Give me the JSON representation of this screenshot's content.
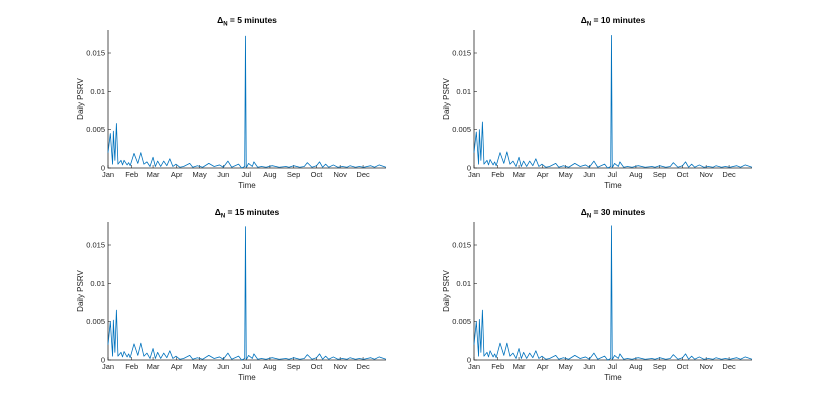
{
  "chart_data": [
    {
      "type": "line",
      "title_prefix": "Δ",
      "title_subscript": "N",
      "title_suffix": " = 5 minutes",
      "xlabel": "Time",
      "ylabel": "Daily PSRV",
      "ylim": [
        0,
        0.018
      ],
      "y_ticks": [
        0,
        0.005,
        0.01,
        0.015
      ],
      "y_tick_labels": [
        "0",
        "0.005",
        "0.01",
        "0.015"
      ],
      "x_ticks": [
        1,
        32,
        60,
        91,
        121,
        152,
        182,
        213,
        244,
        274,
        305,
        335
      ],
      "x_tick_labels": [
        "Jan",
        "Feb",
        "Mar",
        "Apr",
        "May",
        "Jun",
        "Jul",
        "Aug",
        "Sep",
        "Oct",
        "Nov",
        "Dec"
      ],
      "xlim": [
        1,
        365
      ],
      "color": "#0072BD",
      "x": [
        1,
        4,
        7,
        8,
        10,
        12,
        14,
        18,
        20,
        22,
        26,
        28,
        30,
        35,
        40,
        44,
        48,
        52,
        56,
        60,
        63,
        66,
        70,
        74,
        78,
        82,
        86,
        90,
        95,
        100,
        108,
        112,
        118,
        125,
        133,
        140,
        147,
        152,
        158,
        163,
        172,
        176,
        178,
        180,
        181,
        182,
        183,
        185,
        190,
        192,
        197,
        202,
        208,
        216,
        225,
        234,
        238,
        244,
        252,
        258,
        262,
        268,
        274,
        278,
        282,
        286,
        290,
        296,
        302,
        308,
        314,
        318,
        325,
        330,
        336,
        345,
        350,
        356,
        365
      ],
      "y": [
        0.002,
        0.0045,
        0.0005,
        0.0048,
        0.001,
        0.0058,
        0.0005,
        0.001,
        0.0004,
        0.001,
        0.0004,
        0.0007,
        0.0003,
        0.0019,
        0.0006,
        0.002,
        0.0005,
        0.0008,
        0.0002,
        0.0014,
        0.0002,
        0.0009,
        0.0002,
        0.0009,
        0.0003,
        0.0012,
        0.0002,
        0.0005,
        0.0001,
        0.0002,
        0.0006,
        0.0001,
        0.0003,
        0.0001,
        0.0006,
        0.0002,
        0.0004,
        0.0001,
        0.0009,
        0.0001,
        0.0005,
        0.0,
        0.0001,
        0.0002,
        0.0172,
        0.0001,
        0.0002,
        0.0006,
        0.0002,
        0.0008,
        0.0001,
        0.0002,
        0.0001,
        0.0003,
        0.0001,
        0.0002,
        0.0001,
        0.0003,
        0.0001,
        0.0002,
        0.0007,
        0.0001,
        0.0003,
        0.0008,
        0.0001,
        0.0005,
        0.0001,
        0.0004,
        0.0001,
        0.0002,
        0.0001,
        0.0003,
        0.0001,
        0.0002,
        0.0001,
        0.0003,
        0.0001,
        0.0004,
        0.0001
      ]
    },
    {
      "type": "line",
      "title_prefix": "Δ",
      "title_subscript": "N",
      "title_suffix": " = 10 minutes",
      "xlabel": "Time",
      "ylabel": "Daily PSRV",
      "ylim": [
        0,
        0.018
      ],
      "y_ticks": [
        0,
        0.005,
        0.01,
        0.015
      ],
      "y_tick_labels": [
        "0",
        "0.005",
        "0.01",
        "0.015"
      ],
      "x_ticks": [
        1,
        32,
        60,
        91,
        121,
        152,
        182,
        213,
        244,
        274,
        305,
        335
      ],
      "x_tick_labels": [
        "Jan",
        "Feb",
        "Mar",
        "Apr",
        "May",
        "Jun",
        "Jul",
        "Aug",
        "Sep",
        "Oct",
        "Nov",
        "Dec"
      ],
      "xlim": [
        1,
        365
      ],
      "color": "#0072BD",
      "x": [
        1,
        4,
        7,
        8,
        10,
        12,
        14,
        18,
        20,
        22,
        26,
        28,
        30,
        35,
        40,
        44,
        48,
        52,
        56,
        60,
        63,
        66,
        70,
        74,
        78,
        82,
        86,
        90,
        95,
        100,
        108,
        112,
        118,
        125,
        133,
        140,
        147,
        152,
        158,
        163,
        172,
        176,
        178,
        180,
        181,
        182,
        183,
        185,
        190,
        192,
        197,
        202,
        208,
        216,
        225,
        234,
        238,
        244,
        252,
        258,
        262,
        268,
        274,
        278,
        282,
        286,
        290,
        296,
        302,
        308,
        314,
        318,
        325,
        330,
        336,
        345,
        350,
        356,
        365
      ],
      "y": [
        0.002,
        0.0047,
        0.0005,
        0.005,
        0.001,
        0.006,
        0.0005,
        0.001,
        0.0004,
        0.0011,
        0.0004,
        0.0008,
        0.0003,
        0.002,
        0.0006,
        0.0021,
        0.0005,
        0.0009,
        0.0002,
        0.0014,
        0.0002,
        0.0009,
        0.0002,
        0.0009,
        0.0003,
        0.0012,
        0.0002,
        0.0005,
        0.0001,
        0.0002,
        0.0006,
        0.0001,
        0.0003,
        0.0001,
        0.0006,
        0.0002,
        0.0004,
        0.0001,
        0.0009,
        0.0001,
        0.0005,
        0.0,
        0.0001,
        0.0002,
        0.0173,
        0.0001,
        0.0002,
        0.0006,
        0.0002,
        0.0008,
        0.0001,
        0.0002,
        0.0001,
        0.0003,
        0.0001,
        0.0002,
        0.0001,
        0.0003,
        0.0001,
        0.0002,
        0.0007,
        0.0001,
        0.0003,
        0.0008,
        0.0001,
        0.0005,
        0.0001,
        0.0004,
        0.0001,
        0.0002,
        0.0001,
        0.0003,
        0.0001,
        0.0002,
        0.0001,
        0.0003,
        0.0001,
        0.0004,
        0.0001
      ]
    },
    {
      "type": "line",
      "title_prefix": "Δ",
      "title_subscript": "N",
      "title_suffix": " = 15 minutes",
      "xlabel": "Time",
      "ylabel": "Daily PSRV",
      "ylim": [
        0,
        0.018
      ],
      "y_ticks": [
        0,
        0.005,
        0.01,
        0.015
      ],
      "y_tick_labels": [
        "0",
        "0.005",
        "0.01",
        "0.015"
      ],
      "x_ticks": [
        1,
        32,
        60,
        91,
        121,
        152,
        182,
        213,
        244,
        274,
        305,
        335
      ],
      "x_tick_labels": [
        "Jan",
        "Feb",
        "Mar",
        "Apr",
        "May",
        "Jun",
        "Jul",
        "Aug",
        "Sep",
        "Oct",
        "Nov",
        "Dec"
      ],
      "xlim": [
        1,
        365
      ],
      "color": "#0072BD",
      "x": [
        1,
        4,
        7,
        8,
        10,
        12,
        14,
        18,
        20,
        22,
        26,
        28,
        30,
        35,
        40,
        44,
        48,
        52,
        56,
        60,
        63,
        66,
        70,
        74,
        78,
        82,
        86,
        90,
        95,
        100,
        108,
        112,
        118,
        125,
        133,
        140,
        147,
        152,
        158,
        163,
        172,
        176,
        178,
        180,
        181,
        182,
        183,
        185,
        190,
        192,
        197,
        202,
        208,
        216,
        225,
        234,
        238,
        244,
        252,
        258,
        262,
        268,
        274,
        278,
        282,
        286,
        290,
        296,
        302,
        308,
        314,
        318,
        325,
        330,
        336,
        345,
        350,
        356,
        365
      ],
      "y": [
        0.002,
        0.005,
        0.0005,
        0.0052,
        0.001,
        0.0065,
        0.0005,
        0.001,
        0.0004,
        0.0011,
        0.0004,
        0.0008,
        0.0003,
        0.0021,
        0.0006,
        0.0022,
        0.0005,
        0.0009,
        0.0002,
        0.0015,
        0.0002,
        0.001,
        0.0002,
        0.0009,
        0.0003,
        0.0012,
        0.0002,
        0.0005,
        0.0001,
        0.0002,
        0.0006,
        0.0001,
        0.0003,
        0.0001,
        0.0006,
        0.0002,
        0.0004,
        0.0001,
        0.0009,
        0.0001,
        0.0005,
        0.0,
        0.0001,
        0.0002,
        0.0174,
        0.0001,
        0.0002,
        0.0006,
        0.0002,
        0.0008,
        0.0001,
        0.0002,
        0.0001,
        0.0003,
        0.0001,
        0.0002,
        0.0001,
        0.0003,
        0.0001,
        0.0002,
        0.0007,
        0.0001,
        0.0003,
        0.0008,
        0.0001,
        0.0005,
        0.0001,
        0.0004,
        0.0001,
        0.0002,
        0.0001,
        0.0003,
        0.0001,
        0.0002,
        0.0001,
        0.0003,
        0.0001,
        0.0004,
        0.0001
      ]
    },
    {
      "type": "line",
      "title_prefix": "Δ",
      "title_subscript": "N",
      "title_suffix": " = 30 minutes",
      "xlabel": "Time",
      "ylabel": "Daily PSRV",
      "ylim": [
        0,
        0.018
      ],
      "y_ticks": [
        0,
        0.005,
        0.01,
        0.015
      ],
      "y_tick_labels": [
        "0",
        "0.005",
        "0.01",
        "0.015"
      ],
      "x_ticks": [
        1,
        32,
        60,
        91,
        121,
        152,
        182,
        213,
        244,
        274,
        305,
        335
      ],
      "x_tick_labels": [
        "Jan",
        "Feb",
        "Mar",
        "Apr",
        "May",
        "Jun",
        "Jul",
        "Aug",
        "Sep",
        "Oct",
        "Nov",
        "Dec"
      ],
      "xlim": [
        1,
        365
      ],
      "color": "#0072BD",
      "x": [
        1,
        4,
        7,
        8,
        10,
        12,
        14,
        18,
        20,
        22,
        26,
        28,
        30,
        35,
        40,
        44,
        48,
        52,
        56,
        60,
        63,
        66,
        70,
        74,
        78,
        82,
        86,
        90,
        95,
        100,
        108,
        112,
        118,
        125,
        133,
        140,
        147,
        152,
        158,
        163,
        172,
        176,
        178,
        180,
        181,
        182,
        183,
        185,
        190,
        192,
        197,
        202,
        208,
        216,
        225,
        234,
        238,
        244,
        252,
        258,
        262,
        268,
        274,
        278,
        282,
        286,
        290,
        296,
        302,
        308,
        314,
        318,
        325,
        330,
        336,
        345,
        350,
        356,
        365
      ],
      "y": [
        0.002,
        0.005,
        0.0005,
        0.0053,
        0.001,
        0.0065,
        0.0005,
        0.001,
        0.0004,
        0.0012,
        0.0004,
        0.0008,
        0.0003,
        0.0022,
        0.0006,
        0.0022,
        0.0005,
        0.0009,
        0.0002,
        0.0015,
        0.0002,
        0.001,
        0.0002,
        0.0009,
        0.0003,
        0.0012,
        0.0002,
        0.0005,
        0.0001,
        0.0002,
        0.0006,
        0.0001,
        0.0003,
        0.0001,
        0.0006,
        0.0002,
        0.0004,
        0.0001,
        0.0009,
        0.0001,
        0.0005,
        0.0,
        0.0001,
        0.0002,
        0.0175,
        0.0001,
        0.0002,
        0.0006,
        0.0002,
        0.0008,
        0.0001,
        0.0002,
        0.0001,
        0.0003,
        0.0001,
        0.0002,
        0.0001,
        0.0003,
        0.0001,
        0.0002,
        0.0007,
        0.0001,
        0.0003,
        0.0008,
        0.0001,
        0.0005,
        0.0001,
        0.0004,
        0.0001,
        0.0002,
        0.0001,
        0.0003,
        0.0001,
        0.0002,
        0.0001,
        0.0003,
        0.0001,
        0.0004,
        0.0001
      ]
    }
  ]
}
